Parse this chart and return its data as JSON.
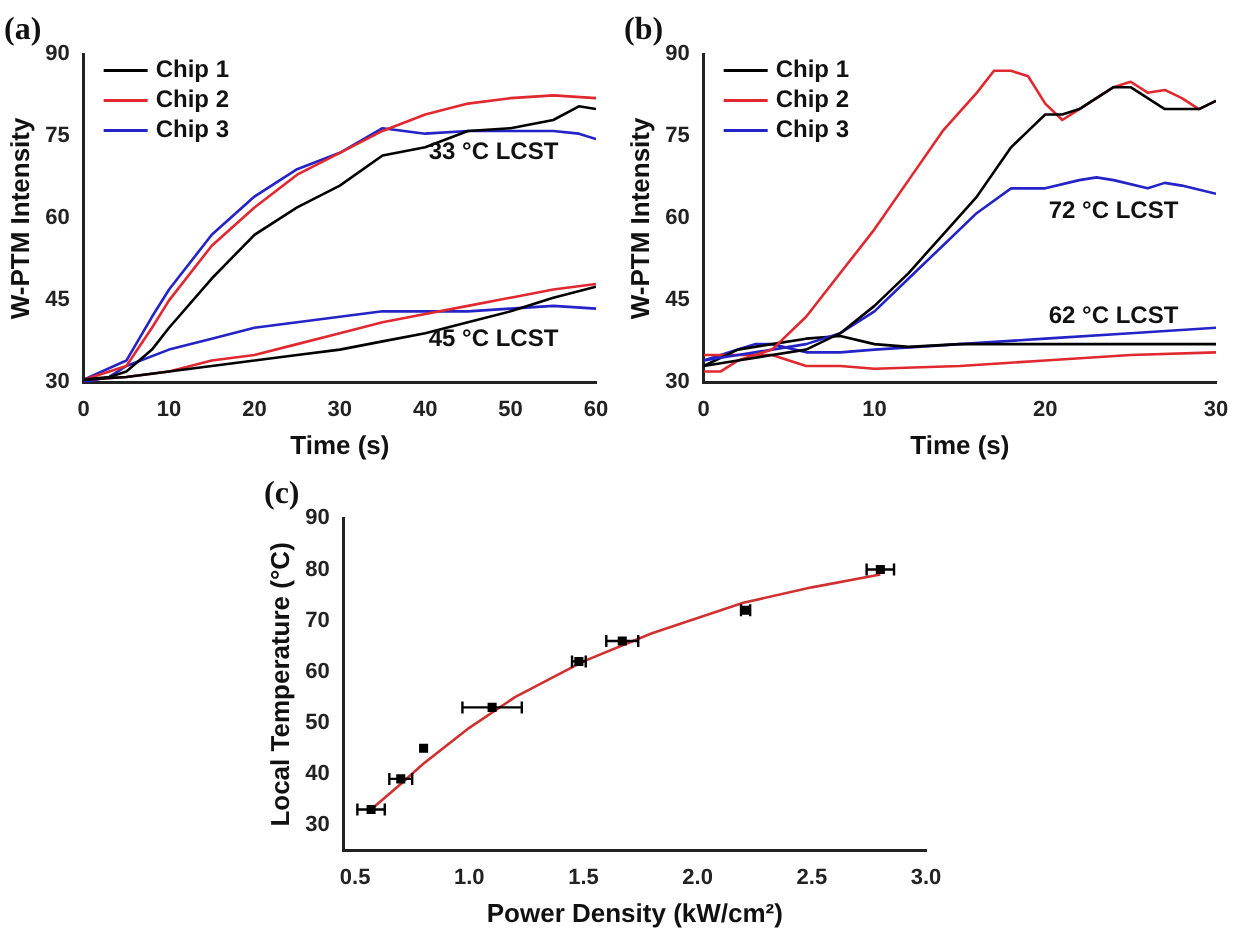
{
  "chart_data": [
    {
      "type": "line",
      "title": "(a)",
      "xlabel": "Time (s)",
      "ylabel": "W-PTM Intensity",
      "xlim": [
        0,
        60
      ],
      "xticks": [
        0,
        10,
        20,
        30,
        40,
        50,
        60
      ],
      "ylim": [
        30,
        90
      ],
      "yticks": [
        30,
        45,
        60,
        75,
        90
      ],
      "legend": "top left",
      "annotations": [
        "33 °C LCST",
        "45 °C LCST"
      ],
      "series": [
        {
          "name": "Chip 1",
          "color": "#000000",
          "x": [
            0,
            3,
            5,
            8,
            10,
            15,
            20,
            25,
            30,
            35,
            40,
            45,
            50,
            55,
            58,
            60
          ],
          "values": [
            30.5,
            31,
            32,
            36,
            40,
            49,
            57,
            62,
            66,
            71.5,
            73,
            76,
            76.5,
            78,
            80.5,
            80
          ]
        },
        {
          "name": "Chip 2",
          "color": "#e0282e",
          "x": [
            0,
            5,
            8,
            10,
            15,
            20,
            25,
            30,
            35,
            40,
            45,
            50,
            55,
            60
          ],
          "values": [
            30.5,
            33,
            40,
            45,
            55,
            62,
            68,
            72,
            76,
            79,
            81,
            82,
            82.5,
            82
          ]
        },
        {
          "name": "Chip 3",
          "color": "#2323c8",
          "x": [
            0,
            5,
            8,
            10,
            15,
            20,
            25,
            30,
            35,
            40,
            45,
            50,
            55,
            58,
            60
          ],
          "values": [
            30.5,
            34,
            42,
            47,
            57,
            64,
            69,
            72,
            76.5,
            75.5,
            76,
            76,
            76,
            75.5,
            74.5
          ]
        },
        {
          "color": "#000000",
          "x": [
            0,
            5,
            10,
            15,
            20,
            25,
            30,
            35,
            40,
            45,
            50,
            55,
            60
          ],
          "values": [
            30.5,
            31,
            32,
            33,
            34,
            35,
            36,
            37.5,
            39,
            41,
            43,
            45.5,
            47.5
          ]
        },
        {
          "color": "#e0282e",
          "x": [
            0,
            5,
            10,
            15,
            20,
            25,
            30,
            35,
            40,
            45,
            50,
            55,
            60
          ],
          "values": [
            30.5,
            31,
            32,
            34,
            35,
            37,
            39,
            41,
            42.5,
            44,
            45.5,
            47,
            48
          ]
        },
        {
          "color": "#2323c8",
          "x": [
            0,
            3,
            5,
            10,
            15,
            20,
            25,
            30,
            35,
            40,
            45,
            50,
            55,
            60
          ],
          "values": [
            30,
            31,
            33,
            36,
            38,
            40,
            41,
            42,
            43,
            43,
            43,
            43.5,
            44,
            43.5
          ]
        }
      ]
    },
    {
      "type": "line",
      "title": "(b)",
      "xlabel": "Time (s)",
      "ylabel": "W-PTM Intensity",
      "xlim": [
        0,
        30
      ],
      "xticks": [
        0,
        10,
        20,
        30
      ],
      "ylim": [
        30,
        90
      ],
      "yticks": [
        30,
        45,
        60,
        75,
        90
      ],
      "legend": "top left",
      "annotations": [
        "72 °C LCST",
        "62 °C LCST"
      ],
      "series": [
        {
          "name": "Chip 1",
          "color": "#000000",
          "x": [
            0,
            2,
            4,
            6,
            8,
            10,
            12,
            14,
            16,
            18,
            19,
            20,
            21,
            22,
            23,
            24,
            25,
            26,
            27,
            28,
            29,
            30
          ],
          "values": [
            33,
            34,
            35,
            36,
            39,
            44,
            50,
            57,
            64,
            73,
            76,
            79,
            79,
            80,
            82,
            84,
            84,
            82,
            80,
            80,
            80,
            81.5
          ]
        },
        {
          "name": "Chip 2",
          "color": "#e0282e",
          "x": [
            0,
            1,
            2,
            4,
            6,
            8,
            10,
            12,
            14,
            16,
            17,
            18,
            19,
            20,
            21,
            22,
            24,
            25,
            26,
            27,
            28,
            29,
            30
          ],
          "values": [
            32,
            32,
            34,
            36,
            42,
            50,
            58,
            67,
            76,
            83,
            87,
            87,
            86,
            81,
            78,
            80,
            84,
            85,
            83,
            83.5,
            82,
            80,
            81.5
          ]
        },
        {
          "name": "Chip 3",
          "color": "#2323c8",
          "x": [
            0,
            2,
            4,
            6,
            8,
            10,
            12,
            14,
            16,
            18,
            20,
            22,
            23,
            24,
            26,
            27,
            28,
            30
          ],
          "values": [
            34,
            35,
            36,
            37,
            39,
            43,
            49,
            55,
            61,
            65.5,
            65.5,
            67,
            67.5,
            67,
            65.5,
            66.5,
            66,
            64.5
          ]
        },
        {
          "color": "#000000",
          "x": [
            0,
            2,
            4,
            6,
            8,
            10,
            12,
            15,
            20,
            25,
            30
          ],
          "values": [
            33,
            36,
            37,
            38,
            38.5,
            37,
            36.5,
            37,
            37,
            37,
            37
          ]
        },
        {
          "color": "#e0282e",
          "x": [
            0,
            2,
            4,
            6,
            8,
            10,
            15,
            20,
            25,
            30
          ],
          "values": [
            35,
            35,
            35,
            33,
            33,
            32.5,
            33,
            34,
            35,
            35.5
          ]
        },
        {
          "color": "#2323c8",
          "x": [
            0,
            2,
            3,
            4,
            6,
            8,
            10,
            15,
            20,
            25,
            30
          ],
          "values": [
            34,
            36,
            37,
            37,
            35.5,
            35.5,
            36,
            37,
            38,
            39,
            40
          ]
        }
      ]
    },
    {
      "type": "scatter",
      "title": "(c)",
      "xlabel": "Power Density (kW/cm²)",
      "ylabel": "Local Temperature (°C)",
      "xlim": [
        0.45,
        3
      ],
      "xticks": [
        0.5,
        {
          "value": 1,
          "label": "1.0"
        },
        1.5,
        {
          "value": 2,
          "label": "2.0"
        },
        2.5,
        {
          "value": 3,
          "label": "3.0"
        }
      ],
      "ylim": [
        25,
        90
      ],
      "yticks": [
        30,
        40,
        50,
        60,
        70,
        80,
        90
      ],
      "series": [
        {
          "type": "scatter",
          "color": "#000000",
          "marker": "square",
          "x": [
            0.57,
            0.7,
            0.8,
            1.1,
            1.48,
            1.67,
            2.21,
            2.8
          ],
          "values": [
            33,
            39,
            45,
            53,
            62,
            66,
            72,
            80
          ],
          "xerrors": [
            0.06,
            0.05,
            null,
            0.13,
            0.03,
            0.07,
            0.02,
            0.06
          ]
        },
        {
          "type": "line",
          "color": "#d03030",
          "x": [
            0.57,
            0.7,
            0.8,
            1,
            1.2,
            1.5,
            1.8,
            2,
            2.2,
            2.5,
            2.8
          ],
          "values": [
            33,
            38,
            42,
            49,
            55,
            62,
            67.5,
            70.5,
            73.5,
            76.5,
            79
          ]
        }
      ]
    }
  ]
}
